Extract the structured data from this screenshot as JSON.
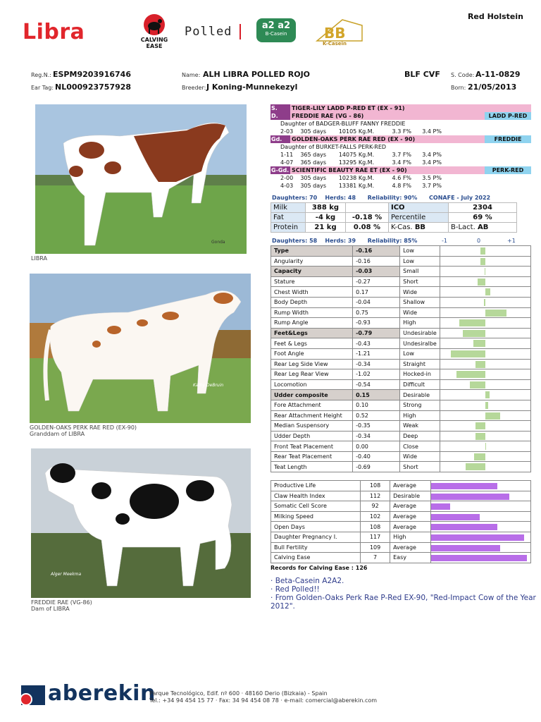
{
  "header": {
    "name": "Libra",
    "breed": "Red Holstein",
    "logos": {
      "calving_ease": "CALVING EASE",
      "polled": "Polled",
      "a2": "a2 a2",
      "a2_sub": "B-Casein",
      "bb": "BB",
      "bb_sub": "K-Casein"
    }
  },
  "ids": {
    "reg_label": "Reg.N.:",
    "reg": "ESPM9203916746",
    "ear_label": "Ear Tag:",
    "ear": "NL000923757928",
    "name_label": "Name:",
    "name": "ALH LIBRA POLLED ROJO",
    "breeder_label": "Breeder:",
    "breeder": "J Koning-Munnekezyl",
    "blf": "BLF CVF",
    "scode_label": "S. Code:",
    "scode": "A-11-0829",
    "born_label": "Born:",
    "born": "21/05/2013"
  },
  "photos": {
    "p1_caption": "LIBRA",
    "p1_credit": "Gonda",
    "p2_caption1": "GOLDEN-OAKS PERK RAE RED (EX-90)",
    "p2_caption2": "Granddam of LIBRA",
    "p2_credit": "Kathy DeBruin",
    "p3_caption1": "FREDDIE RAE (VG-86)",
    "p3_caption2": "Dam of LIBRA",
    "p3_credit": "Alger Meekma"
  },
  "pedigree": {
    "s_label": "S.",
    "s_name": "TIGER-LILY LADD P-RED ET   (EX - 91)",
    "d_label": "D.",
    "d_name": "FREDDIE RAE  (VG - 86)",
    "d_tag": "LADD P-RED",
    "d_daughter": "Daughter of BADGER-BLUFF FANNY FREDDIE",
    "d_rec1": "2-03    305 days       10105 Kg.M.          3.3 F%      3.4 P%",
    "gd_label": "Gd.",
    "gd_name": "GOLDEN-OAKS PERK RAE RED  (EX - 90)",
    "gd_tag": "FREDDIE",
    "gd_daughter": "Daughter of BURKET-FALLS PERK-RED",
    "gd_rec1": "1-11    365 days       14075 Kg.M.          3.7 F%      3.4 P%",
    "gd_rec2": "4-07    365 days       13295 Kg.M.          3.4 F%      3.4 P%",
    "ggd_label": "G-Gd.",
    "ggd_name": "SCIENTIFIC BEAUTY RAE ET   (EX - 90)",
    "ggd_tag": "PERK-RED",
    "ggd_rec1": "2-00    305 days       10238 Kg.M.          4.6 F%      3.5 P%",
    "ggd_rec2": "4-03    305 days       13381 Kg.M.          4.8 F%      3.7 P%"
  },
  "production": {
    "statline": "Daughters: 70    Herds: 48      Reliability: 90%      CONAFE - July 2022",
    "milk_label": "Milk",
    "milk": "388 kg",
    "ico_label": "ICO",
    "ico": "2304",
    "fat_label": "Fat",
    "fat_kg": "-4 kg",
    "fat_pct": "-0.18 %",
    "perc_label": "Percentile",
    "perc": "69 %",
    "prot_label": "Protein",
    "prot_kg": "21 kg",
    "prot_pct": "0.08 %",
    "kcas_label": "K-Cas.",
    "kcas": "BB",
    "blact_label": "B-Lact.",
    "blact": "AB"
  },
  "linear": {
    "statline": "Daughters: 58    Herds: 39      Reliability: 85%",
    "axis": [
      "-1",
      "0",
      "+1"
    ],
    "rows": [
      {
        "name": "Type",
        "value": "-0.16",
        "desc": "Low",
        "hd": true,
        "v": -0.16
      },
      {
        "name": "Angularity",
        "value": "-0.16",
        "desc": "Low",
        "v": -0.16
      },
      {
        "name": "Capacity",
        "value": "-0.03",
        "desc": "Small",
        "hd": true,
        "v": -0.03
      },
      {
        "name": "Stature",
        "value": "-0.27",
        "desc": "Short",
        "v": -0.27
      },
      {
        "name": "Chest Width",
        "value": "0.17",
        "desc": "Wide",
        "v": 0.17
      },
      {
        "name": "Body Depth",
        "value": "-0.04",
        "desc": "Shallow",
        "v": -0.04
      },
      {
        "name": "Rump Width",
        "value": "0.75",
        "desc": "Wide",
        "v": 0.75
      },
      {
        "name": "Rump Angle",
        "value": "-0.93",
        "desc": "High",
        "v": -0.93
      },
      {
        "name": "Feet&Legs",
        "value": "-0.79",
        "desc": "Undesirable",
        "hd": true,
        "v": -0.79
      },
      {
        "name": "Feet & Legs",
        "value": "-0.43",
        "desc": "Undesiralbe",
        "v": -0.43
      },
      {
        "name": "Foot Angle",
        "value": "-1.21",
        "desc": "Low",
        "v": -1.21
      },
      {
        "name": "Rear Leg Side View",
        "value": "-0.34",
        "desc": "Straight",
        "v": -0.34
      },
      {
        "name": "Rear Leg Rear View",
        "value": "-1.02",
        "desc": "Hocked-in",
        "v": -1.02
      },
      {
        "name": "Locomotion",
        "value": "-0.54",
        "desc": "Difficult",
        "v": -0.54
      },
      {
        "name": "Udder composite",
        "value": "0.15",
        "desc": "Desirable",
        "hd": true,
        "v": 0.15
      },
      {
        "name": "Fore Attachment",
        "value": "0.10",
        "desc": "Strong",
        "v": 0.1
      },
      {
        "name": "Rear Attachment Height",
        "value": "0.52",
        "desc": "High",
        "v": 0.52
      },
      {
        "name": "Median Suspensory",
        "value": "-0.35",
        "desc": "Weak",
        "v": -0.35
      },
      {
        "name": "Udder Depth",
        "value": "-0.34",
        "desc": "Deep",
        "v": -0.34
      },
      {
        "name": "Front Teat Placement",
        "value": "0.00",
        "desc": "Close",
        "v": 0.0
      },
      {
        "name": "Rear Teat Placement",
        "value": "-0.40",
        "desc": "Wide",
        "v": -0.4
      },
      {
        "name": "Teat Length",
        "value": "-0.69",
        "desc": "Short",
        "v": -0.69
      }
    ]
  },
  "functional": {
    "rows": [
      {
        "name": "Productive Life",
        "value": "108",
        "desc": "Average",
        "v": 108
      },
      {
        "name": "Claw Health Index",
        "value": "112",
        "desc": "Desirable",
        "v": 112
      },
      {
        "name": "Somatic Cell Score",
        "value": "92",
        "desc": "Average",
        "v": 92
      },
      {
        "name": "Milking Speed",
        "value": "102",
        "desc": "Average",
        "v": 102
      },
      {
        "name": "Open Days",
        "value": "108",
        "desc": "Average",
        "v": 108
      },
      {
        "name": "Daughter Pregnancy I.",
        "value": "117",
        "desc": "High",
        "v": 117
      },
      {
        "name": "Bull Fertility",
        "value": "109",
        "desc": "Average",
        "v": 109
      },
      {
        "name": "Calving Ease",
        "value": "7",
        "desc": "Easy",
        "v": 7
      }
    ],
    "records": "Records for Calving Ease : 126"
  },
  "notes": [
    "Beta-Casein A2A2.",
    "Red Polled!!",
    "From Golden-Oaks Perk Rae P-Red EX-90, \"Red-Impact Cow of the Year 2012\"."
  ],
  "footer": {
    "brand": "aberekin",
    "addr1": "Parque Tecnológico, Edif. nº 600 · 48160 Derio (Bizkaia) - Spain",
    "addr2": "Tel.: +34 94 454 15 77 · Fax: 34 94 454 08 78 · e-mail: comercial@aberekin.com"
  }
}
